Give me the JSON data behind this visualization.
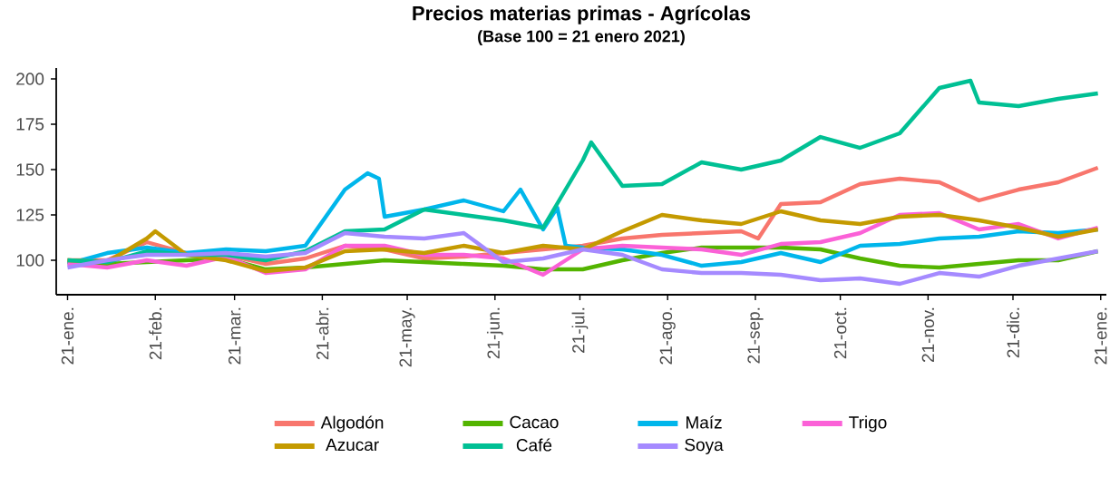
{
  "chart_data": {
    "type": "line",
    "title": "Precios materias primas - Agrícolas",
    "subtitle": "(Base 100 = 21 enero 2021)",
    "x": [
      "2021-01-21",
      "2021-02-04",
      "2021-02-18",
      "2021-03-04",
      "2021-03-18",
      "2021-04-01",
      "2021-04-15",
      "2021-04-29",
      "2021-05-13",
      "2021-05-27",
      "2021-06-10",
      "2021-06-24",
      "2021-07-08",
      "2021-07-22",
      "2021-08-05",
      "2021-08-19",
      "2021-09-02",
      "2021-09-16",
      "2021-09-30",
      "2021-10-14",
      "2021-10-28",
      "2021-11-11",
      "2021-11-25",
      "2021-12-09",
      "2021-12-23",
      "2022-01-06",
      "2022-01-20"
    ],
    "xlim": [
      "2021-01-17",
      "2022-01-23"
    ],
    "xticks": [
      {
        "value": "2021-01-21",
        "label": "21-ene."
      },
      {
        "value": "2021-02-21",
        "label": "21-feb."
      },
      {
        "value": "2021-03-21",
        "label": "21-mar."
      },
      {
        "value": "2021-04-21",
        "label": "21-abr."
      },
      {
        "value": "2021-05-21",
        "label": "21-may."
      },
      {
        "value": "2021-06-21",
        "label": "21-jun."
      },
      {
        "value": "2021-07-21",
        "label": "21-jul."
      },
      {
        "value": "2021-08-21",
        "label": "21-ago."
      },
      {
        "value": "2021-09-21",
        "label": "21-sep."
      },
      {
        "value": "2021-10-21",
        "label": "21-oct."
      },
      {
        "value": "2021-11-21",
        "label": "21-nov."
      },
      {
        "value": "2021-12-21",
        "label": "21-dic."
      },
      {
        "value": "2022-01-21",
        "label": "21-ene."
      }
    ],
    "ylim": [
      81,
      206
    ],
    "yticks": [
      100,
      125,
      150,
      175,
      200
    ],
    "legend": "bottom",
    "line_style": "solid",
    "series": [
      {
        "name": "Algodón",
        "color": "#f8766d",
        "x": [
          "2021-01-21",
          "2021-02-04",
          "2021-02-18",
          "2021-03-04",
          "2021-03-18",
          "2021-04-01",
          "2021-04-15",
          "2021-04-29",
          "2021-05-13",
          "2021-05-27",
          "2021-06-10",
          "2021-06-24",
          "2021-07-08",
          "2021-07-22",
          "2021-08-05",
          "2021-08-19",
          "2021-09-02",
          "2021-09-16",
          "2021-09-22",
          "2021-09-30",
          "2021-10-14",
          "2021-10-28",
          "2021-11-11",
          "2021-11-25",
          "2021-12-09",
          "2021-12-23",
          "2022-01-06",
          "2022-01-20"
        ],
        "values": [
          100,
          100,
          110,
          104,
          103,
          98,
          101,
          108,
          106,
          101,
          102,
          104,
          106,
          108,
          112,
          114,
          115,
          116,
          112,
          131,
          132,
          142,
          145,
          143,
          133,
          139,
          143,
          151
        ]
      },
      {
        "name": "Azucar",
        "color": "#c49a00",
        "x": [
          "2021-01-21",
          "2021-02-04",
          "2021-02-18",
          "2021-02-21",
          "2021-03-04",
          "2021-03-18",
          "2021-04-01",
          "2021-04-15",
          "2021-04-29",
          "2021-05-13",
          "2021-05-27",
          "2021-06-10",
          "2021-06-24",
          "2021-07-08",
          "2021-07-22",
          "2021-08-05",
          "2021-08-19",
          "2021-09-02",
          "2021-09-16",
          "2021-09-30",
          "2021-10-14",
          "2021-10-28",
          "2021-11-11",
          "2021-11-25",
          "2021-12-09",
          "2021-12-23",
          "2022-01-06",
          "2022-01-20"
        ],
        "values": [
          100,
          99,
          112,
          116,
          103,
          100,
          94,
          96,
          105,
          106,
          104,
          108,
          104,
          108,
          106,
          116,
          125,
          122,
          120,
          127,
          122,
          120,
          124,
          125,
          122,
          118,
          113,
          117
        ]
      },
      {
        "name": "Cacao",
        "color": "#53b400",
        "values": [
          99,
          98,
          99,
          100,
          101,
          95,
          96,
          98,
          100,
          99,
          98,
          97,
          95,
          95,
          100,
          104,
          107,
          107,
          107,
          106,
          101,
          97,
          96,
          98,
          100,
          100,
          105
        ]
      },
      {
        "name": "Café",
        "color": "#00c094",
        "x": [
          "2021-01-21",
          "2021-02-04",
          "2021-02-18",
          "2021-03-04",
          "2021-03-18",
          "2021-04-01",
          "2021-04-15",
          "2021-04-29",
          "2021-05-13",
          "2021-05-27",
          "2021-06-10",
          "2021-06-24",
          "2021-07-08",
          "2021-07-22",
          "2021-07-25",
          "2021-08-05",
          "2021-08-19",
          "2021-09-02",
          "2021-09-16",
          "2021-09-30",
          "2021-10-14",
          "2021-10-28",
          "2021-11-11",
          "2021-11-25",
          "2021-12-06",
          "2021-12-09",
          "2021-12-23",
          "2022-01-06",
          "2022-01-20"
        ],
        "values": [
          100,
          99,
          105,
          103,
          103,
          100,
          105,
          116,
          117,
          128,
          125,
          122,
          118,
          155,
          165,
          141,
          142,
          154,
          150,
          155,
          168,
          162,
          170,
          195,
          199,
          187,
          185,
          189,
          192
        ]
      },
      {
        "name": "Maíz",
        "color": "#00b6eb",
        "x": [
          "2021-01-21",
          "2021-02-04",
          "2021-02-18",
          "2021-03-04",
          "2021-03-18",
          "2021-04-01",
          "2021-04-15",
          "2021-04-29",
          "2021-05-07",
          "2021-05-11",
          "2021-05-13",
          "2021-05-27",
          "2021-06-10",
          "2021-06-24",
          "2021-06-30",
          "2021-07-08",
          "2021-07-13",
          "2021-07-16",
          "2021-07-22",
          "2021-08-05",
          "2021-08-19",
          "2021-09-02",
          "2021-09-16",
          "2021-09-30",
          "2021-10-14",
          "2021-10-28",
          "2021-11-11",
          "2021-11-25",
          "2021-12-09",
          "2021-12-23",
          "2022-01-06",
          "2022-01-20"
        ],
        "values": [
          98,
          104,
          107,
          104,
          106,
          105,
          108,
          139,
          148,
          145,
          124,
          128,
          133,
          127,
          139,
          117,
          129,
          108,
          107,
          106,
          103,
          97,
          99,
          104,
          99,
          108,
          109,
          112,
          113,
          116,
          115,
          117
        ]
      },
      {
        "name": "Soya",
        "color": "#a58aff",
        "values": [
          96,
          100,
          103,
          103,
          104,
          102,
          104,
          115,
          113,
          112,
          115,
          99,
          101,
          106,
          103,
          95,
          93,
          93,
          92,
          89,
          90,
          87,
          93,
          91,
          97,
          101,
          105
        ]
      },
      {
        "name": "Trigo",
        "color": "#fb61d7",
        "values": [
          98,
          96,
          100,
          97,
          102,
          93,
          95,
          108,
          108,
          103,
          103,
          101,
          92,
          106,
          108,
          107,
          106,
          103,
          109,
          110,
          115,
          125,
          126,
          117,
          120,
          112,
          118
        ]
      }
    ]
  }
}
